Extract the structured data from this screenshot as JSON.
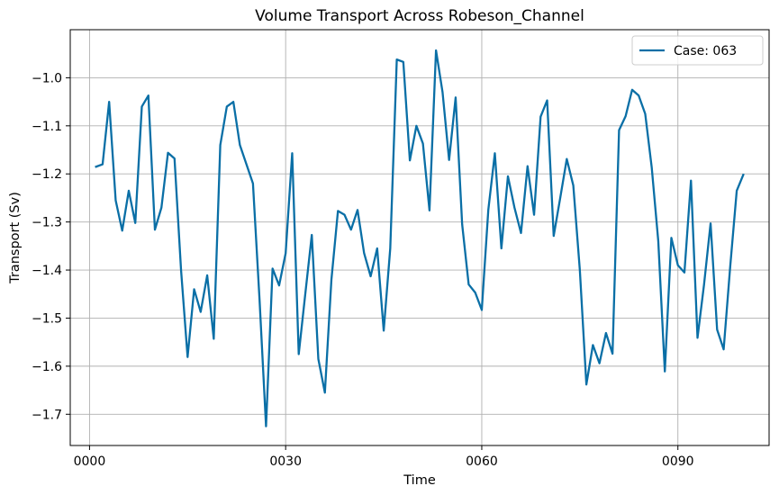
{
  "chart_data": {
    "type": "line",
    "title": "Volume Transport Across Robeson_Channel",
    "xlabel": "Time",
    "ylabel": "Transport (Sv)",
    "xlim": [
      -2.95,
      103.95
    ],
    "ylim": [
      -1.765,
      -0.9
    ],
    "x_ticks": [
      {
        "value": 0,
        "label": "0000"
      },
      {
        "value": 30,
        "label": "0030"
      },
      {
        "value": 60,
        "label": "0060"
      },
      {
        "value": 90,
        "label": "0090"
      }
    ],
    "y_ticks": [
      {
        "value": -1.7,
        "label": "−1.7"
      },
      {
        "value": -1.6,
        "label": "−1.6"
      },
      {
        "value": -1.5,
        "label": "−1.5"
      },
      {
        "value": -1.4,
        "label": "−1.4"
      },
      {
        "value": -1.3,
        "label": "−1.3"
      },
      {
        "value": -1.2,
        "label": "−1.2"
      },
      {
        "value": -1.1,
        "label": "−1.1"
      },
      {
        "value": -1.0,
        "label": "−1.0"
      }
    ],
    "grid": true,
    "legend_position": "top-right",
    "series": [
      {
        "name": "Case: 063",
        "color": "#0a6fa6",
        "x": [
          1,
          2,
          3,
          4,
          5,
          6,
          7,
          8,
          9,
          10,
          11,
          12,
          13,
          14,
          15,
          16,
          17,
          18,
          19,
          20,
          21,
          22,
          23,
          24,
          25,
          26,
          27,
          28,
          29,
          30,
          31,
          32,
          33,
          34,
          35,
          36,
          37,
          38,
          39,
          40,
          41,
          42,
          43,
          44,
          45,
          46,
          47,
          48,
          49,
          50,
          51,
          52,
          53,
          54,
          55,
          56,
          57,
          58,
          59,
          60,
          61,
          62,
          63,
          64,
          65,
          66,
          67,
          68,
          69,
          70,
          71,
          72,
          73,
          74,
          75,
          76,
          77,
          78,
          79,
          80,
          81,
          82,
          83,
          84,
          85,
          86,
          87,
          88,
          89,
          90,
          91,
          92,
          93,
          94,
          95,
          96,
          97,
          98,
          99,
          100
        ],
        "y": [
          -1.185,
          -1.18,
          -1.05,
          -1.255,
          -1.318,
          -1.235,
          -1.302,
          -1.06,
          -1.037,
          -1.316,
          -1.27,
          -1.156,
          -1.168,
          -1.4,
          -1.581,
          -1.44,
          -1.487,
          -1.411,
          -1.543,
          -1.14,
          -1.06,
          -1.05,
          -1.14,
          -1.18,
          -1.22,
          -1.46,
          -1.725,
          -1.397,
          -1.432,
          -1.365,
          -1.157,
          -1.575,
          -1.45,
          -1.327,
          -1.585,
          -1.655,
          -1.42,
          -1.277,
          -1.285,
          -1.316,
          -1.275,
          -1.365,
          -1.413,
          -1.355,
          -1.526,
          -1.355,
          -0.962,
          -0.967,
          -1.172,
          -1.1,
          -1.137,
          -1.276,
          -0.943,
          -1.03,
          -1.171,
          -1.041,
          -1.305,
          -1.43,
          -1.447,
          -1.483,
          -1.275,
          -1.157,
          -1.355,
          -1.205,
          -1.27,
          -1.323,
          -1.184,
          -1.285,
          -1.081,
          -1.047,
          -1.329,
          -1.25,
          -1.169,
          -1.224,
          -1.4,
          -1.638,
          -1.556,
          -1.594,
          -1.531,
          -1.574,
          -1.109,
          -1.08,
          -1.025,
          -1.037,
          -1.075,
          -1.187,
          -1.34,
          -1.611,
          -1.333,
          -1.39,
          -1.405,
          -1.214,
          -1.541,
          -1.43,
          -1.303,
          -1.524,
          -1.565,
          -1.393,
          -1.235,
          -1.202
        ]
      }
    ]
  }
}
